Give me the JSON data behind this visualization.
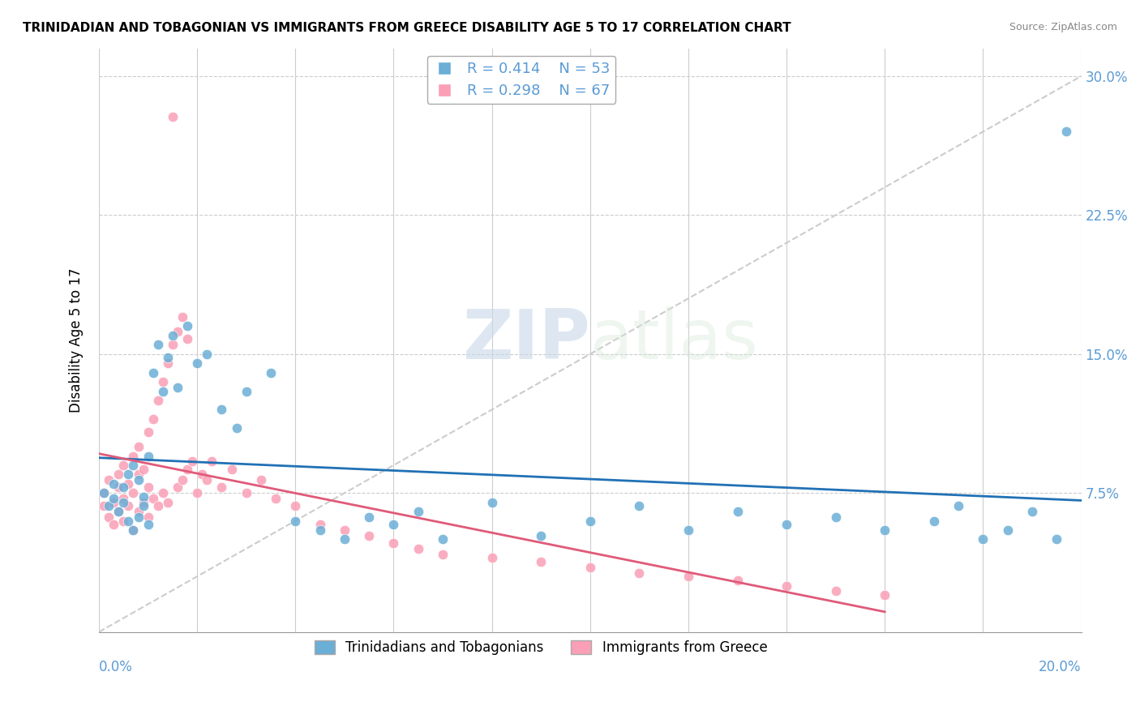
{
  "title": "TRINIDADIAN AND TOBAGONIAN VS IMMIGRANTS FROM GREECE DISABILITY AGE 5 TO 17 CORRELATION CHART",
  "source": "Source: ZipAtlas.com",
  "ylabel": "Disability Age 5 to 17",
  "r_blue": 0.414,
  "n_blue": 53,
  "r_pink": 0.298,
  "n_pink": 67,
  "xlim": [
    0.0,
    0.2
  ],
  "ylim": [
    0.0,
    0.315
  ],
  "yticks": [
    0.0,
    0.075,
    0.15,
    0.225,
    0.3
  ],
  "ytick_labels": [
    "",
    "7.5%",
    "15.0%",
    "22.5%",
    "30.0%"
  ],
  "watermark_zip": "ZIP",
  "watermark_atlas": "atlas",
  "blue_color": "#6baed6",
  "pink_color": "#fa9fb5",
  "blue_line_color": "#2171b5",
  "pink_line_color": "#e05a7a",
  "legend_label_blue": "Trinidadians and Tobagonians",
  "legend_label_pink": "Immigrants from Greece",
  "blue_scatter": {
    "x": [
      0.001,
      0.002,
      0.003,
      0.003,
      0.004,
      0.005,
      0.005,
      0.006,
      0.006,
      0.007,
      0.007,
      0.008,
      0.008,
      0.009,
      0.009,
      0.01,
      0.01,
      0.011,
      0.012,
      0.013,
      0.014,
      0.015,
      0.016,
      0.018,
      0.02,
      0.022,
      0.025,
      0.028,
      0.03,
      0.035,
      0.04,
      0.045,
      0.05,
      0.055,
      0.06,
      0.065,
      0.07,
      0.08,
      0.09,
      0.1,
      0.11,
      0.12,
      0.13,
      0.14,
      0.15,
      0.16,
      0.17,
      0.175,
      0.18,
      0.185,
      0.19,
      0.195,
      0.197
    ],
    "y": [
      0.075,
      0.068,
      0.072,
      0.08,
      0.065,
      0.07,
      0.078,
      0.06,
      0.085,
      0.055,
      0.09,
      0.082,
      0.062,
      0.073,
      0.068,
      0.095,
      0.058,
      0.14,
      0.155,
      0.13,
      0.148,
      0.16,
      0.132,
      0.165,
      0.145,
      0.15,
      0.12,
      0.11,
      0.13,
      0.14,
      0.06,
      0.055,
      0.05,
      0.062,
      0.058,
      0.065,
      0.05,
      0.07,
      0.052,
      0.06,
      0.068,
      0.055,
      0.065,
      0.058,
      0.062,
      0.055,
      0.06,
      0.068,
      0.05,
      0.055,
      0.065,
      0.05,
      0.27
    ]
  },
  "pink_scatter": {
    "x": [
      0.001,
      0.001,
      0.002,
      0.002,
      0.003,
      0.003,
      0.004,
      0.004,
      0.004,
      0.005,
      0.005,
      0.005,
      0.006,
      0.006,
      0.007,
      0.007,
      0.007,
      0.008,
      0.008,
      0.008,
      0.009,
      0.009,
      0.01,
      0.01,
      0.01,
      0.011,
      0.011,
      0.012,
      0.012,
      0.013,
      0.013,
      0.014,
      0.014,
      0.015,
      0.015,
      0.016,
      0.016,
      0.017,
      0.017,
      0.018,
      0.018,
      0.019,
      0.02,
      0.021,
      0.022,
      0.023,
      0.025,
      0.027,
      0.03,
      0.033,
      0.036,
      0.04,
      0.045,
      0.05,
      0.055,
      0.06,
      0.065,
      0.07,
      0.08,
      0.09,
      0.1,
      0.11,
      0.12,
      0.13,
      0.14,
      0.15,
      0.16
    ],
    "y": [
      0.068,
      0.075,
      0.062,
      0.082,
      0.058,
      0.07,
      0.078,
      0.065,
      0.085,
      0.06,
      0.072,
      0.09,
      0.068,
      0.08,
      0.055,
      0.075,
      0.095,
      0.065,
      0.085,
      0.1,
      0.07,
      0.088,
      0.062,
      0.078,
      0.108,
      0.072,
      0.115,
      0.068,
      0.125,
      0.075,
      0.135,
      0.07,
      0.145,
      0.278,
      0.155,
      0.078,
      0.162,
      0.082,
      0.17,
      0.088,
      0.158,
      0.092,
      0.075,
      0.085,
      0.082,
      0.092,
      0.078,
      0.088,
      0.075,
      0.082,
      0.072,
      0.068,
      0.058,
      0.055,
      0.052,
      0.048,
      0.045,
      0.042,
      0.04,
      0.038,
      0.035,
      0.032,
      0.03,
      0.028,
      0.025,
      0.022,
      0.02
    ]
  }
}
